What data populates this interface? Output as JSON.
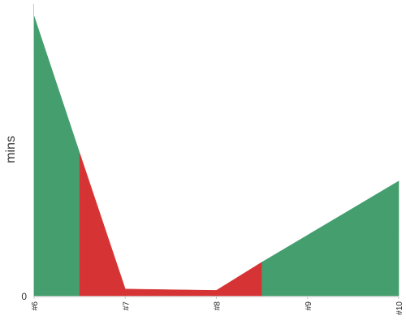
{
  "chart_data": {
    "type": "area",
    "xlabel": "",
    "ylabel": "mins",
    "categories": [
      "#6",
      "#7",
      "#8",
      "#9",
      "#10"
    ],
    "x": [
      0,
      0.5,
      1,
      2,
      2.5,
      4
    ],
    "y": [
      100,
      51,
      2.4,
      1.9,
      12,
      41
    ],
    "segment_colors": [
      "#449e6e",
      "#d63434",
      "#d63434",
      "#d63434",
      "#449e6e"
    ],
    "y_tick_labels": [
      "0"
    ],
    "ylim": [
      0,
      100
    ],
    "grid": false
  },
  "colors": {
    "green": "#449e6e",
    "red": "#d63434",
    "axis": "#c8c8c8"
  }
}
